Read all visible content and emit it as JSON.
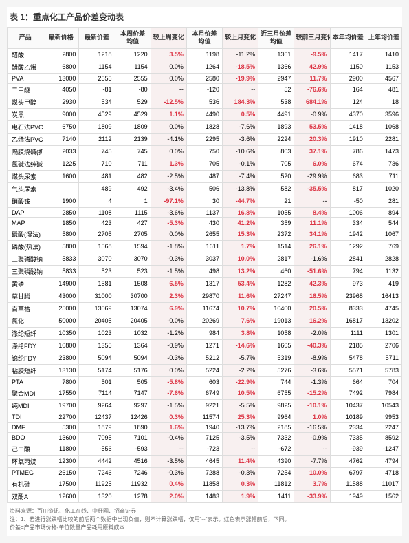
{
  "title": "表 1：重点化工产品价差变动表",
  "columns": [
    "产品",
    "最新价格",
    "最新价差",
    "本周价差均值",
    "较上周变化",
    "本月价差均值",
    "较上月变化",
    "近三月价差均值",
    "较前三月变化",
    "本年均价差",
    "上年均价差"
  ],
  "highlight_cols": [
    4,
    6,
    8
  ],
  "red_color": "#dc3545",
  "rows": [
    {
      "c": [
        "醋酸",
        "2800",
        "1218",
        "1220",
        "3.5%",
        "1198",
        "-11.2%",
        "1361",
        "-9.5%",
        "1417",
        "1410"
      ],
      "r": [
        4,
        8
      ]
    },
    {
      "c": [
        "醋酸乙烯",
        "6800",
        "1154",
        "1154",
        "0.0%",
        "1264",
        "-18.5%",
        "1366",
        "42.9%",
        "1150",
        "1153"
      ],
      "r": [
        6,
        8
      ]
    },
    {
      "c": [
        "PVA",
        "13000",
        "2555",
        "2555",
        "0.0%",
        "2580",
        "-19.9%",
        "2947",
        "11.7%",
        "2900",
        "4567"
      ],
      "r": [
        6,
        8
      ]
    },
    {
      "c": [
        "二甲醚",
        "4050",
        "-81",
        "-80",
        "--",
        "-120",
        "--",
        "52",
        "-76.6%",
        "164",
        "481"
      ],
      "r": [
        8
      ]
    },
    {
      "c": [
        "煤头甲醇",
        "2930",
        "534",
        "529",
        "-12.5%",
        "536",
        "184.3%",
        "538",
        "684.1%",
        "124",
        "18"
      ],
      "r": [
        4,
        6,
        8
      ]
    },
    {
      "c": [
        "炭黑",
        "9000",
        "4529",
        "4529",
        "1.1%",
        "4490",
        "0.5%",
        "4491",
        "-0.9%",
        "4370",
        "3596"
      ],
      "r": [
        4,
        6
      ]
    },
    {
      "c": [
        "电石法PVC",
        "6750",
        "1809",
        "1809",
        "0.0%",
        "1828",
        "-7.6%",
        "1893",
        "53.5%",
        "1418",
        "1068"
      ],
      "r": [
        8
      ]
    },
    {
      "c": [
        "乙烯法PVC",
        "7140",
        "2112",
        "2139",
        "-4.1%",
        "2295",
        "-3.6%",
        "2224",
        "20.3%",
        "1910",
        "2281"
      ],
      "r": [
        8
      ]
    },
    {
      "c": [
        "隔膜烧碱(折100%)",
        "2033",
        "745",
        "745",
        "0.0%",
        "750",
        "-10.6%",
        "803",
        "37.1%",
        "786",
        "1473"
      ],
      "r": [
        8
      ]
    },
    {
      "c": [
        "氯碱法纯碱",
        "1225",
        "710",
        "711",
        "1.3%",
        "705",
        "-0.1%",
        "705",
        "6.0%",
        "674",
        "736"
      ],
      "r": [
        4,
        8
      ]
    },
    {
      "c": [
        "煤头尿素",
        "1600",
        "481",
        "482",
        "-2.5%",
        "487",
        "-7.4%",
        "520",
        "-29.9%",
        "683",
        "711"
      ],
      "r": []
    },
    {
      "c": [
        "气头尿素",
        "",
        "489",
        "492",
        "-3.4%",
        "506",
        "-13.8%",
        "582",
        "-35.5%",
        "817",
        "1020"
      ],
      "r": [
        8
      ]
    },
    {
      "c": [
        "硝酸铵",
        "1900",
        "4",
        "1",
        "-97.1%",
        "30",
        "-44.7%",
        "21",
        "--",
        "-50",
        "281"
      ],
      "r": [
        4,
        6
      ]
    },
    {
      "c": [
        "DAP",
        "2850",
        "1108",
        "1115",
        "-3.6%",
        "1137",
        "16.8%",
        "1055",
        "8.4%",
        "1006",
        "894"
      ],
      "r": [
        6,
        8
      ]
    },
    {
      "c": [
        "MAP",
        "1850",
        "423",
        "427",
        "-5.3%",
        "430",
        "41.2%",
        "359",
        "11.1%",
        "334",
        "544"
      ],
      "r": [
        4,
        6,
        8
      ]
    },
    {
      "c": [
        "磷酸(湿法)",
        "5800",
        "2705",
        "2705",
        "0.0%",
        "2655",
        "15.3%",
        "2372",
        "34.1%",
        "1942",
        "1067"
      ],
      "r": [
        6,
        8
      ]
    },
    {
      "c": [
        "磷酸(热法)",
        "5800",
        "1568",
        "1594",
        "-1.8%",
        "1611",
        "1.7%",
        "1514",
        "26.1%",
        "1292",
        "769"
      ],
      "r": [
        6,
        8
      ]
    },
    {
      "c": [
        "三聚磷酸钠(湿法)",
        "5833",
        "3070",
        "3070",
        "-0.3%",
        "3037",
        "10.0%",
        "2817",
        "-1.6%",
        "2841",
        "2828"
      ],
      "r": [
        6
      ]
    },
    {
      "c": [
        "三聚磷酸钠(热法)",
        "5833",
        "523",
        "523",
        "-1.5%",
        "498",
        "13.2%",
        "460",
        "-51.6%",
        "794",
        "1132"
      ],
      "r": [
        6,
        8
      ]
    },
    {
      "c": [
        "黄磷",
        "14900",
        "1581",
        "1508",
        "6.5%",
        "1317",
        "53.4%",
        "1282",
        "42.3%",
        "973",
        "419"
      ],
      "r": [
        4,
        6,
        8
      ]
    },
    {
      "c": [
        "草甘膦",
        "43000",
        "31000",
        "30700",
        "2.3%",
        "29870",
        "11.6%",
        "27247",
        "16.5%",
        "23968",
        "16413"
      ],
      "r": [
        4,
        6,
        8
      ]
    },
    {
      "c": [
        "百草枯",
        "25000",
        "13069",
        "13074",
        "6.9%",
        "11674",
        "10.7%",
        "10400",
        "20.5%",
        "8333",
        "4745"
      ],
      "r": [
        4,
        6,
        8
      ]
    },
    {
      "c": [
        "氯化",
        "50000",
        "20405",
        "20405",
        "-0.0%",
        "20269",
        "7.6%",
        "19013",
        "16.2%",
        "16817",
        "13202"
      ],
      "r": [
        6,
        8
      ]
    },
    {
      "c": [
        "涤纶短纤",
        "10350",
        "1023",
        "1032",
        "-1.2%",
        "984",
        "3.8%",
        "1058",
        "-2.0%",
        "1111",
        "1301"
      ],
      "r": [
        6
      ]
    },
    {
      "c": [
        "涤纶FDY",
        "10800",
        "1355",
        "1364",
        "-0.9%",
        "1271",
        "-14.6%",
        "1605",
        "-40.3%",
        "2185",
        "2706"
      ],
      "r": [
        6,
        8
      ]
    },
    {
      "c": [
        "锦纶FDY",
        "23800",
        "5094",
        "5094",
        "-0.3%",
        "5212",
        "-5.7%",
        "5319",
        "-8.9%",
        "5478",
        "5711"
      ],
      "r": []
    },
    {
      "c": [
        "粘胶短纤",
        "13130",
        "5174",
        "5176",
        "0.0%",
        "5224",
        "-2.2%",
        "5276",
        "-3.6%",
        "5571",
        "5783"
      ],
      "r": []
    },
    {
      "c": [
        "PTA",
        "7800",
        "501",
        "505",
        "-5.8%",
        "603",
        "-22.9%",
        "744",
        "-1.3%",
        "664",
        "704"
      ],
      "r": [
        4,
        6
      ]
    },
    {
      "c": [
        "聚合MDI",
        "17550",
        "7114",
        "7147",
        "-7.6%",
        "6749",
        "10.5%",
        "6755",
        "-15.2%",
        "7492",
        "7984"
      ],
      "r": [
        4,
        6,
        8
      ]
    },
    {
      "c": [
        "纯MDI",
        "19700",
        "9264",
        "9297",
        "-1.5%",
        "9221",
        "-5.5%",
        "9825",
        "-10.1%",
        "10437",
        "10543"
      ],
      "r": [
        8
      ]
    },
    {
      "c": [
        "TDI",
        "22700",
        "12437",
        "12426",
        "0.3%",
        "11574",
        "25.3%",
        "9964",
        "1.0%",
        "10189",
        "9953"
      ],
      "r": [
        4,
        6,
        8
      ]
    },
    {
      "c": [
        "DMF",
        "5300",
        "1879",
        "1890",
        "1.6%",
        "1940",
        "-13.7%",
        "2185",
        "-16.5%",
        "2334",
        "2247"
      ],
      "r": [
        4
      ]
    },
    {
      "c": [
        "BDO",
        "13600",
        "7095",
        "7101",
        "-0.4%",
        "7125",
        "-3.5%",
        "7332",
        "-0.9%",
        "7335",
        "8592"
      ],
      "r": []
    },
    {
      "c": [
        "己二酸",
        "11800",
        "-556",
        "-593",
        "--",
        "-723",
        "--",
        "-672",
        "--",
        "-939",
        "-1247"
      ],
      "r": []
    },
    {
      "c": [
        "环氧丙烷",
        "12300",
        "4442",
        "4516",
        "-3.5%",
        "4645",
        "11.4%",
        "4390",
        "-7.7%",
        "4762",
        "4794"
      ],
      "r": [
        6
      ]
    },
    {
      "c": [
        "PTMEG",
        "26150",
        "7246",
        "7246",
        "-0.3%",
        "7288",
        "-0.3%",
        "7254",
        "10.0%",
        "6797",
        "4718"
      ],
      "r": [
        8
      ]
    },
    {
      "c": [
        "有机硅",
        "17500",
        "11925",
        "11932",
        "0.4%",
        "11858",
        "0.3%",
        "11812",
        "3.7%",
        "11588",
        "11017"
      ],
      "r": [
        4,
        6,
        8
      ]
    },
    {
      "c": [
        "双酚A",
        "12600",
        "1320",
        "1278",
        "2.0%",
        "1483",
        "1.9%",
        "1411",
        "-33.9%",
        "1949",
        "1562"
      ],
      "r": [
        4,
        6,
        8
      ]
    }
  ],
  "footer": [
    "资料来源：百川资讯、化工在线、中纤网、招商证券",
    "注：1、若进行涨跌幅比较的前后两个数据中出现负值，则不计算涨跌幅，仅用\"--\"表示。红色表示涨幅前后，下同。",
    "价差=产品市场价格-单位数量产品耗用原料成本"
  ]
}
